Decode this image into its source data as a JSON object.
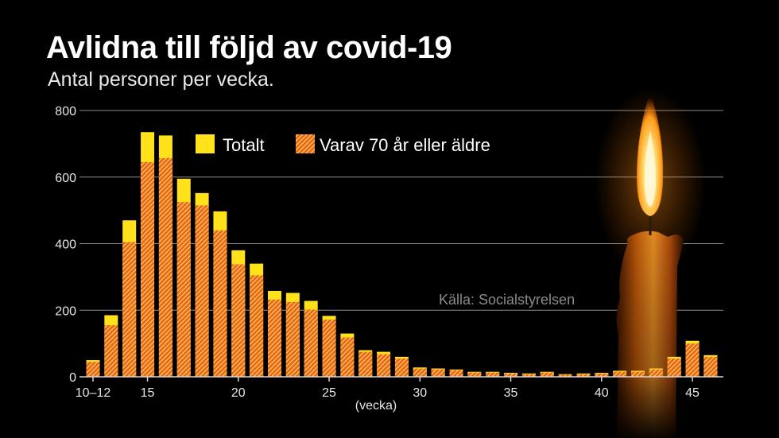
{
  "header": {
    "title": "Avlidna till följd av covid-19",
    "subtitle": "Antal personer per vecka."
  },
  "source": "Källa: Socialstyrelsen",
  "colors": {
    "total": "#ffe21a",
    "elderly": "#e8622a",
    "grid": "#8c8c8c",
    "background": "#000000"
  },
  "decoration": {
    "image": "candle-icon"
  },
  "chart_data": {
    "type": "bar",
    "title": "Avlidna till följd av covid-19",
    "subtitle": "Antal personer per vecka.",
    "xlabel": "(vecka)",
    "ylabel": "",
    "ylim": [
      0,
      800
    ],
    "yticks": [
      0,
      200,
      400,
      600,
      800
    ],
    "categories": [
      "10–12",
      "13",
      "14",
      "15",
      "16",
      "17",
      "18",
      "19",
      "20",
      "21",
      "22",
      "23",
      "24",
      "25",
      "26",
      "27",
      "28",
      "29",
      "30",
      "31",
      "32",
      "33",
      "34",
      "35",
      "36",
      "37",
      "38",
      "39",
      "40",
      "41",
      "42",
      "43",
      "44",
      "45",
      "46"
    ],
    "xtick_labels": [
      {
        "index": 0,
        "label": "10–12"
      },
      {
        "index": 3,
        "label": "15"
      },
      {
        "index": 8,
        "label": "20"
      },
      {
        "index": 13,
        "label": "25"
      },
      {
        "index": 18,
        "label": "30"
      },
      {
        "index": 23,
        "label": "35"
      },
      {
        "index": 28,
        "label": "40"
      },
      {
        "index": 33,
        "label": "45"
      }
    ],
    "legend_position": "top",
    "grid": true,
    "series": [
      {
        "name": "Totalt",
        "values": [
          50,
          185,
          470,
          735,
          725,
          595,
          552,
          497,
          380,
          340,
          258,
          252,
          228,
          183,
          130,
          80,
          75,
          60,
          28,
          25,
          22,
          15,
          15,
          12,
          10,
          15,
          8,
          10,
          12,
          18,
          18,
          25,
          60,
          108,
          65
        ]
      },
      {
        "name": "Varav 70 år eller äldre",
        "values": [
          45,
          155,
          405,
          645,
          657,
          525,
          515,
          440,
          338,
          305,
          232,
          225,
          202,
          172,
          118,
          75,
          68,
          55,
          25,
          22,
          20,
          13,
          13,
          10,
          8,
          13,
          7,
          8,
          10,
          15,
          15,
          22,
          55,
          100,
          60
        ]
      }
    ]
  }
}
